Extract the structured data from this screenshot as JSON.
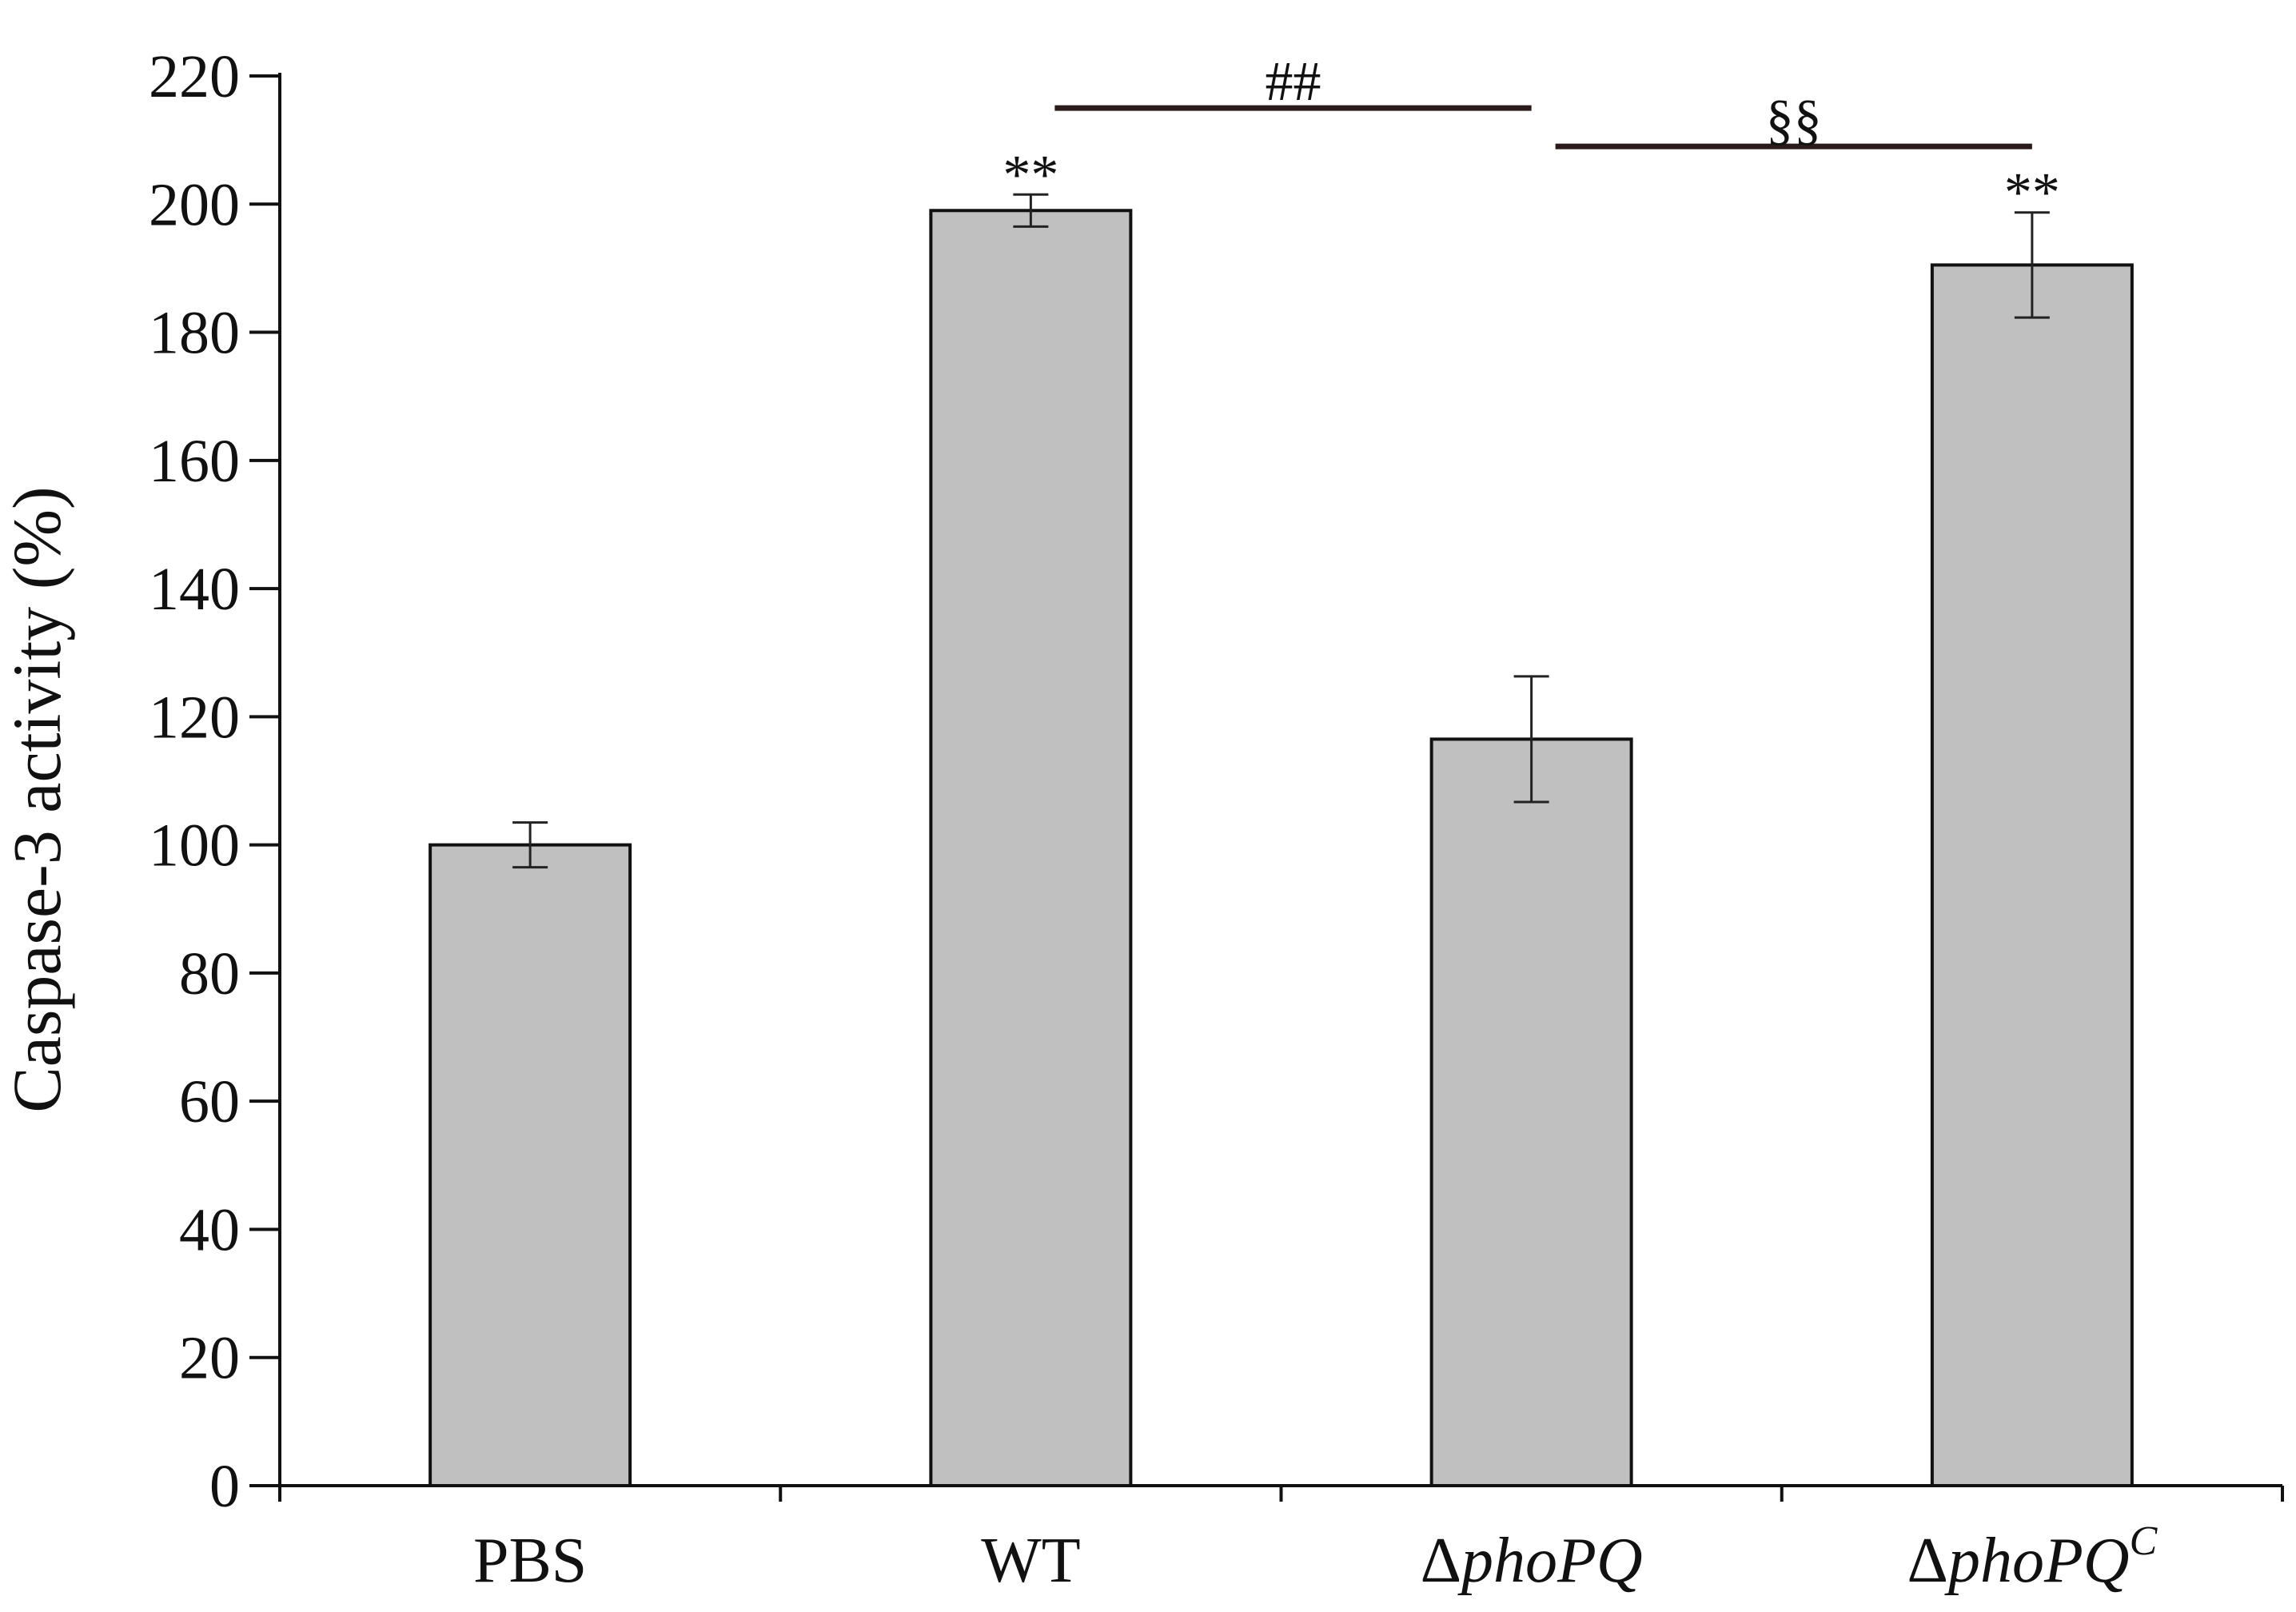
{
  "chart_data": {
    "type": "bar",
    "title": "",
    "xlabel": "",
    "ylabel": "Caspase-3 activity (%)",
    "ylim": [
      0,
      220
    ],
    "yticks": [
      0,
      20,
      40,
      60,
      80,
      100,
      120,
      140,
      160,
      180,
      200,
      220
    ],
    "yticklabels": [
      "0",
      "20",
      "40",
      "60",
      "80",
      "100",
      "120",
      "140",
      "160",
      "180",
      "200",
      "220"
    ],
    "categories": [
      {
        "prefix": "",
        "main": "PBS",
        "italic": false,
        "sup": ""
      },
      {
        "prefix": "",
        "main": "WT",
        "italic": false,
        "sup": ""
      },
      {
        "prefix": "Δ",
        "main": "phoPQ",
        "italic": true,
        "sup": ""
      },
      {
        "prefix": "Δ",
        "main": "phoPQ",
        "italic": true,
        "sup": "C"
      }
    ],
    "values": [
      100,
      199,
      116.5,
      190.5
    ],
    "errors": [
      3.5,
      2.5,
      9.8,
      8.2
    ],
    "bar_color": "#c0c0c0",
    "bar_edge_color": "#111111",
    "annotations": [
      {
        "label": "**",
        "category_index": 1
      },
      {
        "label": "**",
        "category_index": 3
      }
    ],
    "brackets": [
      {
        "label": "##",
        "from_index": 1,
        "to_index": 2,
        "y_value": 215
      },
      {
        "label": "§§",
        "from_index": 2,
        "to_index": 3,
        "y_value": 209
      }
    ]
  }
}
